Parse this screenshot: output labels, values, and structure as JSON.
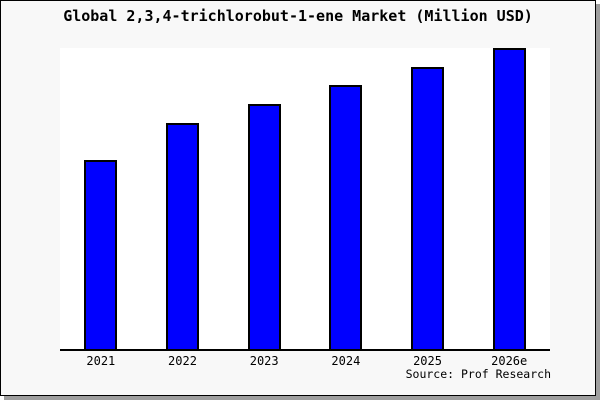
{
  "title": "Global 2,3,4-trichlorobut-1-ene Market (Million USD)",
  "source_label": "Source: Prof Research",
  "colors": {
    "bar_fill": "#0000ff",
    "bar_border": "#000000",
    "plot_background": "#ffffff",
    "canvas_background": "#f8f8f8",
    "frame_border": "#000000",
    "shadow": "#9e9e9e",
    "text": "#000000"
  },
  "chart_data": {
    "type": "bar",
    "title": "Global 2,3,4-trichlorobut-1-ene Market (Million USD)",
    "categories": [
      "2021",
      "2022",
      "2023",
      "2024",
      "2025",
      "2026e"
    ],
    "values": [
      62.8,
      75.1,
      81.4,
      87.7,
      93.7,
      100
    ],
    "values_note": "relative index estimated from bar heights, 2026e = 100; y-axis has no ticks or labels in the image",
    "xlabel": "",
    "ylabel": "",
    "ylim": [
      0,
      100.7
    ],
    "grid": false,
    "legend": false,
    "bar_color": "#0000ff",
    "annotations": [
      "Source: Prof Research"
    ]
  }
}
